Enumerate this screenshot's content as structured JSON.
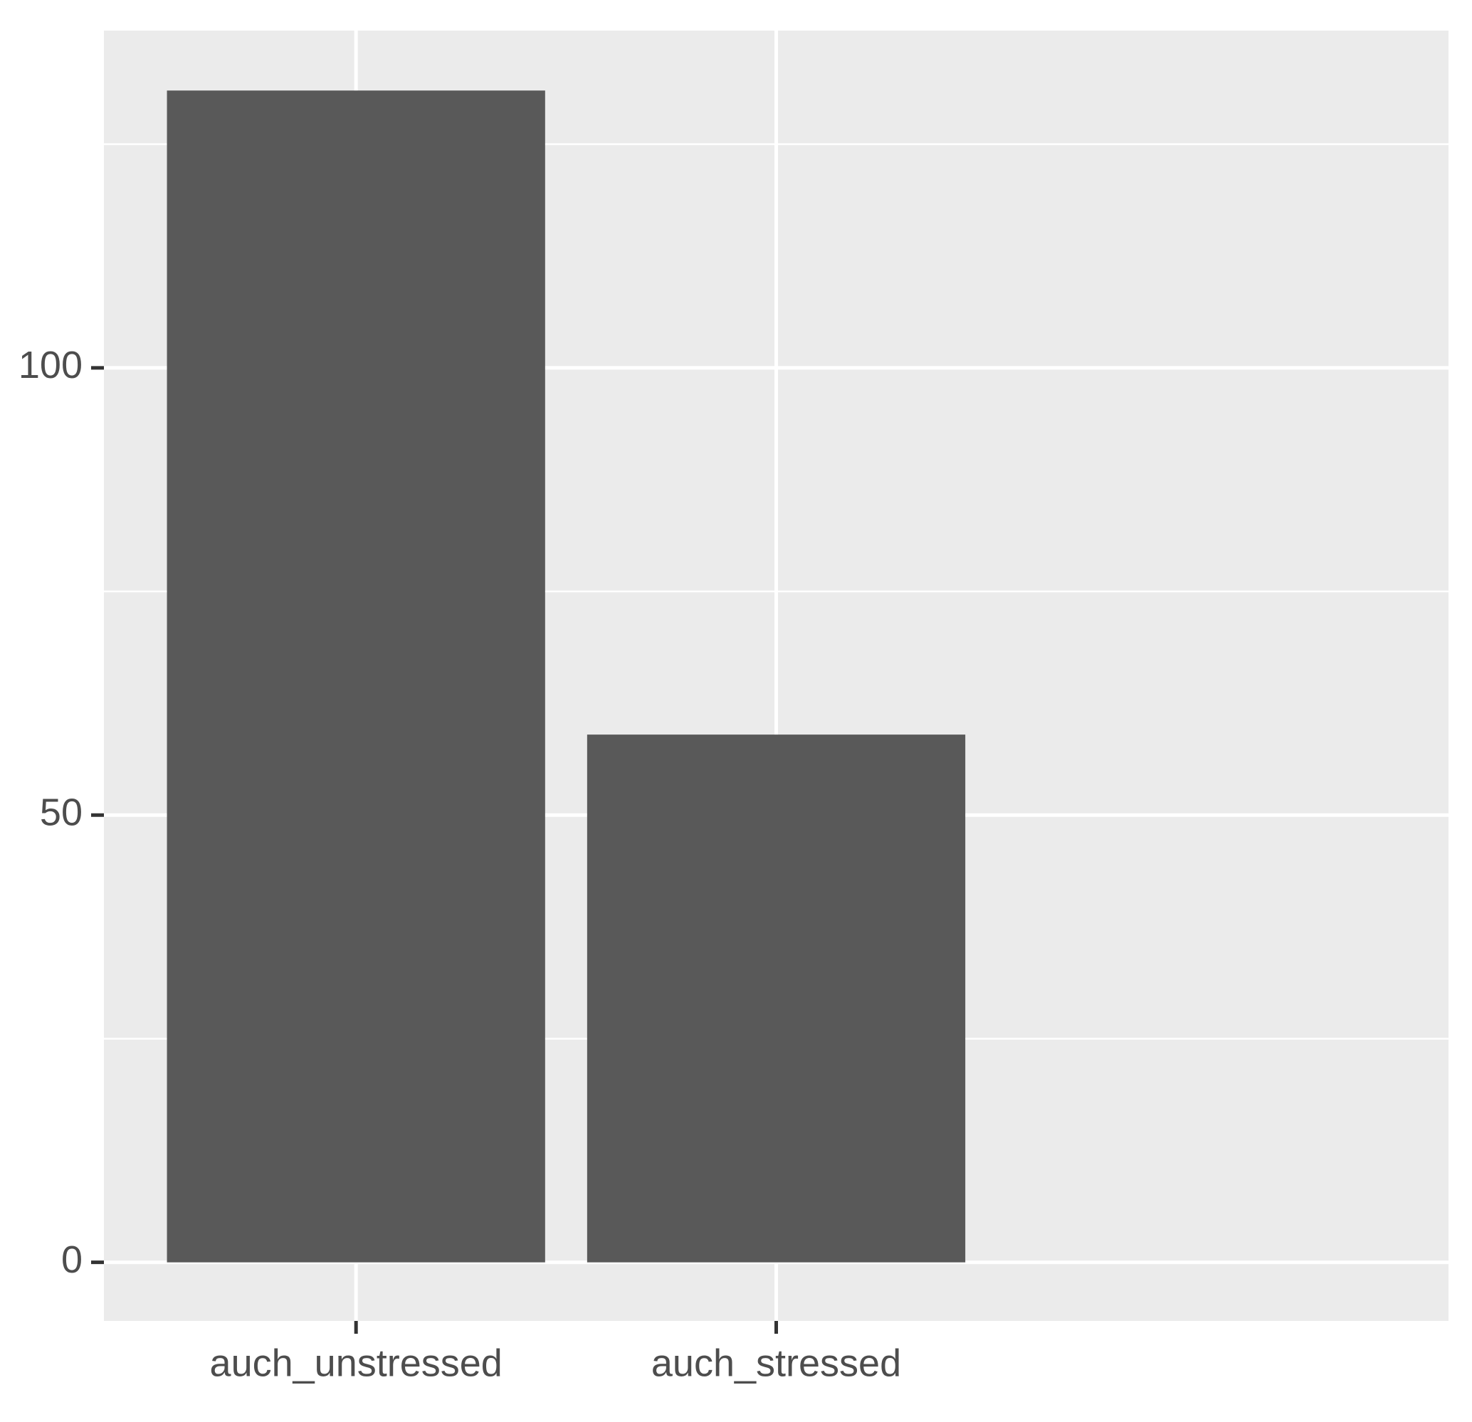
{
  "chart_data": {
    "type": "bar",
    "categories": [
      "auch_unstressed",
      "auch_stressed"
    ],
    "values": [
      131,
      59
    ],
    "color": "#595959",
    "ylim": [
      -6.55,
      137.7
    ],
    "yticks": [
      0,
      50,
      100
    ],
    "grid": true
  }
}
